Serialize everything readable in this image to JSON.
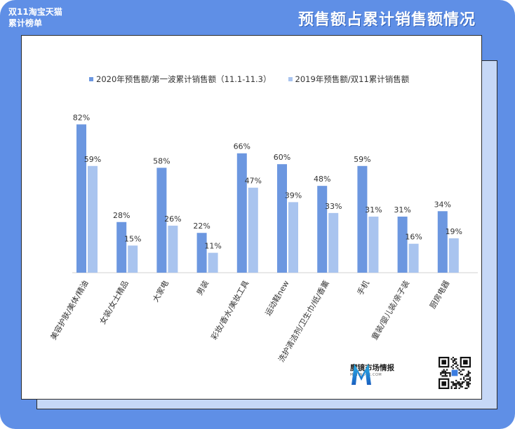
{
  "header": {
    "corner_title": "双11淘宝天猫\n累计榜单",
    "main_title": "预售额占累计销售额情况"
  },
  "brand": {
    "name": "魔镜市场情报",
    "sub": "MKTINDEX.COM"
  },
  "colors": {
    "series1": "#6c97e0",
    "series2": "#a9c4ef",
    "frame": "#5f8fe6"
  },
  "chart_data": {
    "type": "bar",
    "categories": [
      "美容护肤/美体/精油",
      "女装/女士精品",
      "大家电",
      "男装",
      "彩妆/香水/美妆工具",
      "运动鞋new",
      "洗护清洁剂/卫生巾/纸/香薰",
      "手机",
      "童装/婴儿装/亲子装",
      "厨房电器"
    ],
    "series": [
      {
        "name": "2020年预售额/第一波累计销售额（11.1-11.3）",
        "values": [
          82,
          28,
          58,
          22,
          66,
          60,
          48,
          59,
          31,
          34
        ],
        "labels": [
          "82%",
          "28%",
          "58%",
          "22%",
          "66%",
          "60%",
          "48%",
          "59%",
          "31%",
          "34%"
        ]
      },
      {
        "name": "2019年预售额/双11累计销售额",
        "values": [
          59,
          15,
          26,
          11,
          47,
          39,
          33,
          31,
          16,
          19
        ],
        "labels": [
          "59%",
          "15%",
          "26%",
          "11%",
          "47%",
          "39%",
          "33%",
          "31%",
          "16%",
          "19%"
        ]
      }
    ],
    "ylim": [
      0,
      100
    ],
    "legend": "top",
    "grid": false
  }
}
